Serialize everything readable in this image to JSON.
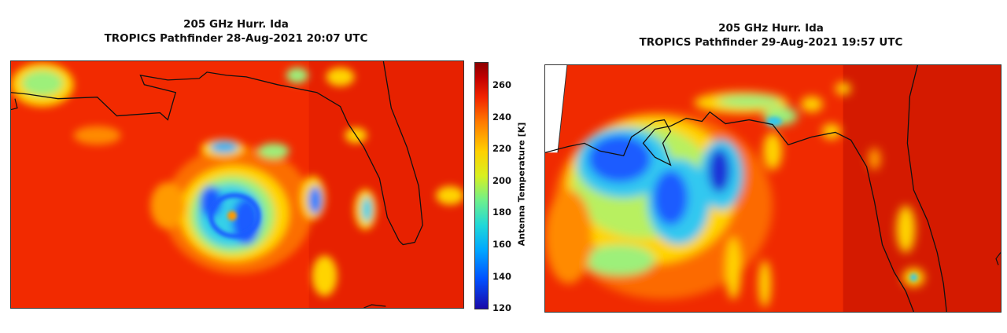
{
  "left_panel": {
    "title_line1": "205 GHz Hurr. Ida",
    "title_line2": "TROPICS Pathfinder 28-Aug-2021 20:07 UTC"
  },
  "right_panel": {
    "title_line1": "205 GHz Hurr. Ida",
    "title_line2": "TROPICS Pathfinder 29-Aug-2021 19:57 UTC"
  },
  "colorbar": {
    "label": "Antenna Temperature [K]",
    "ticks": [
      "120",
      "140",
      "160",
      "180",
      "200",
      "220",
      "240",
      "260"
    ],
    "range": [
      120,
      275
    ],
    "colors": [
      "#1a0aa8",
      "#00a8ff",
      "#6ef08c",
      "#ffd000",
      "#f22400",
      "#8c0000"
    ]
  }
}
